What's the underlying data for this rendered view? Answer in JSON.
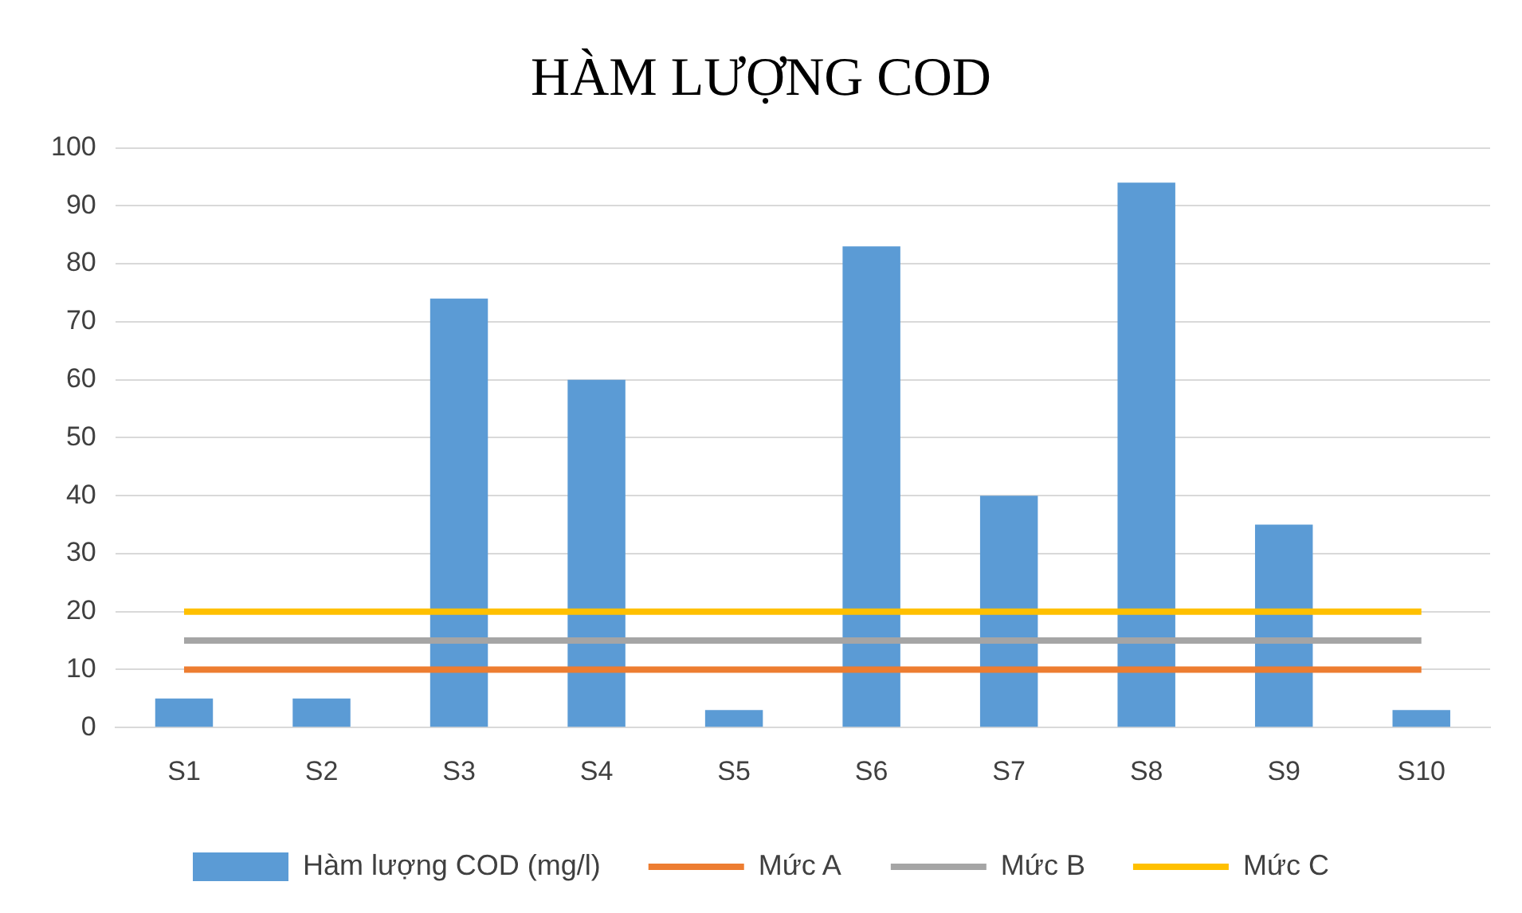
{
  "chart_data": {
    "type": "bar",
    "title": "HÀM LƯỢNG COD",
    "categories": [
      "S1",
      "S2",
      "S3",
      "S4",
      "S5",
      "S6",
      "S7",
      "S8",
      "S9",
      "S10"
    ],
    "series": [
      {
        "name": "Hàm lượng COD (mg/l)",
        "color": "#5b9bd5",
        "values": [
          5,
          5,
          74,
          60,
          3,
          83,
          40,
          94,
          35,
          3
        ]
      },
      {
        "name": "Mức A",
        "type": "line",
        "color": "#ed7d31",
        "values": [
          10,
          10,
          10,
          10,
          10,
          10,
          10,
          10,
          10,
          10
        ]
      },
      {
        "name": "Mức B",
        "type": "line",
        "color": "#a5a5a5",
        "values": [
          15,
          15,
          15,
          15,
          15,
          15,
          15,
          15,
          15,
          15
        ]
      },
      {
        "name": "Mức C",
        "type": "line",
        "color": "#ffc000",
        "values": [
          20,
          20,
          20,
          20,
          20,
          20,
          20,
          20,
          20,
          20
        ]
      }
    ],
    "ylim": [
      0,
      100
    ],
    "yticks": [
      0,
      10,
      20,
      30,
      40,
      50,
      60,
      70,
      80,
      90,
      100
    ],
    "grid": "y",
    "legend": "bottom",
    "marker": "none",
    "line_style": "solid"
  }
}
